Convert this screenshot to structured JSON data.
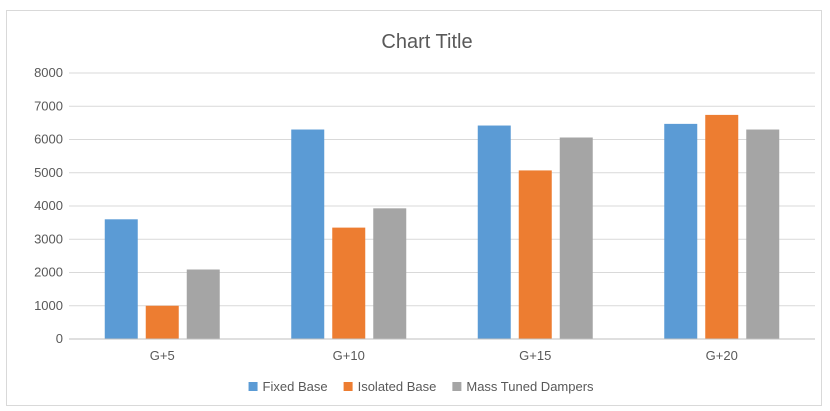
{
  "chart_data": {
    "type": "bar",
    "title": "Chart Title",
    "xlabel": "",
    "ylabel": "",
    "categories": [
      "G+5",
      "G+10",
      "G+15",
      "G+20"
    ],
    "series": [
      {
        "name": "Fixed Base",
        "color": "#5b9bd5",
        "values": [
          3600,
          6300,
          6420,
          6470
        ]
      },
      {
        "name": "Isolated Base",
        "color": "#ed7d31",
        "values": [
          1000,
          3350,
          5070,
          6740
        ]
      },
      {
        "name": "Mass Tuned Dampers",
        "color": "#a5a5a5",
        "values": [
          2090,
          3930,
          6060,
          6300
        ]
      }
    ],
    "ylim": [
      0,
      8000
    ],
    "yticks": [
      0,
      1000,
      2000,
      3000,
      4000,
      5000,
      6000,
      7000,
      8000
    ],
    "grid": true,
    "legend_position": "bottom"
  }
}
